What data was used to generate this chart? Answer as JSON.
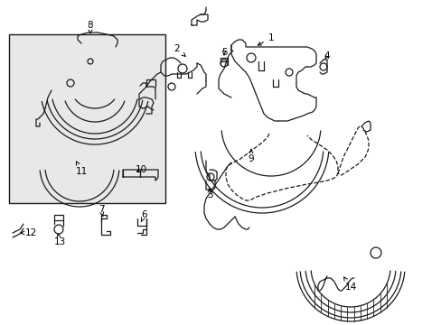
{
  "background_color": "#ffffff",
  "line_color": "#1a1a1a",
  "box_fill": "#e8e8e8",
  "figsize": [
    4.89,
    3.6
  ],
  "dpi": 100,
  "lw": 0.9
}
